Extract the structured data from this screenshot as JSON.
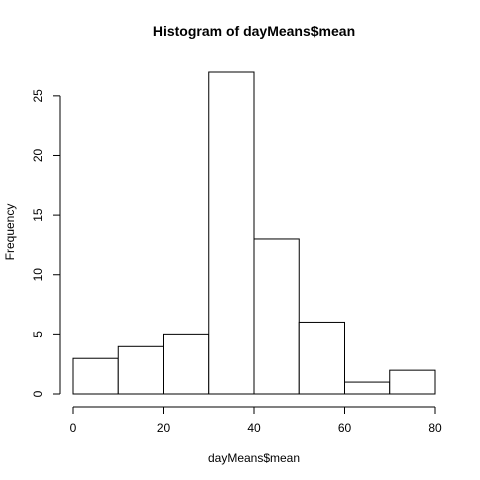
{
  "chart_data": {
    "type": "bar",
    "title": "Histogram of dayMeans$mean",
    "xlabel": "dayMeans$mean",
    "ylabel": "Frequency",
    "bins": [
      {
        "from": 0,
        "to": 10,
        "count": 3
      },
      {
        "from": 10,
        "to": 20,
        "count": 4
      },
      {
        "from": 20,
        "to": 30,
        "count": 5
      },
      {
        "from": 30,
        "to": 40,
        "count": 27
      },
      {
        "from": 40,
        "to": 50,
        "count": 13
      },
      {
        "from": 50,
        "to": 60,
        "count": 6
      },
      {
        "from": 60,
        "to": 70,
        "count": 1
      },
      {
        "from": 70,
        "to": 80,
        "count": 2
      }
    ],
    "xlim": [
      0,
      80
    ],
    "ylim": [
      0,
      27
    ],
    "x_ticks": [
      0,
      20,
      40,
      60,
      80
    ],
    "x_tick_labels": [
      "0",
      "20",
      "40",
      "60",
      "80"
    ],
    "y_ticks": [
      0,
      5,
      10,
      15,
      20,
      25
    ],
    "y_tick_labels": [
      "0",
      "5",
      "10",
      "15",
      "20",
      "25"
    ],
    "grid": false,
    "legend": "none"
  }
}
